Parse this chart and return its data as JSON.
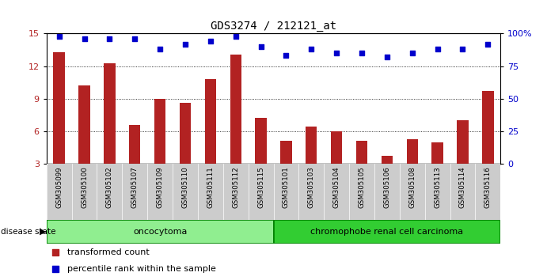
{
  "title": "GDS3274 / 212121_at",
  "samples": [
    "GSM305099",
    "GSM305100",
    "GSM305102",
    "GSM305107",
    "GSM305109",
    "GSM305110",
    "GSM305111",
    "GSM305112",
    "GSM305115",
    "GSM305101",
    "GSM305103",
    "GSM305104",
    "GSM305105",
    "GSM305106",
    "GSM305108",
    "GSM305113",
    "GSM305114",
    "GSM305116"
  ],
  "bar_values": [
    13.3,
    10.2,
    12.3,
    6.6,
    9.0,
    8.6,
    10.8,
    13.1,
    7.2,
    5.1,
    6.4,
    6.0,
    5.1,
    3.7,
    5.3,
    5.0,
    7.0,
    9.7
  ],
  "blue_values": [
    98,
    96,
    96,
    96,
    88,
    92,
    94,
    98,
    90,
    83,
    88,
    85,
    85,
    82,
    85,
    88,
    88,
    92
  ],
  "ylim_left": [
    3,
    15
  ],
  "ylim_right": [
    0,
    100
  ],
  "yticks_left": [
    3,
    6,
    9,
    12,
    15
  ],
  "yticks_right": [
    0,
    25,
    50,
    75,
    100
  ],
  "bar_color": "#B22222",
  "blue_color": "#0000CC",
  "oncocytoma_color": "#90EE90",
  "chromophobe_color": "#32CD32",
  "disease_label": "disease state",
  "oncocytoma_label": "oncocytoma",
  "chromophobe_label": "chromophobe renal cell carcinoma",
  "legend_bar": "transformed count",
  "legend_blue": "percentile rank within the sample",
  "background_color": "#ffffff",
  "tick_bg_color": "#cccccc",
  "n_oncocytoma": 9,
  "n_chromophobe": 9
}
